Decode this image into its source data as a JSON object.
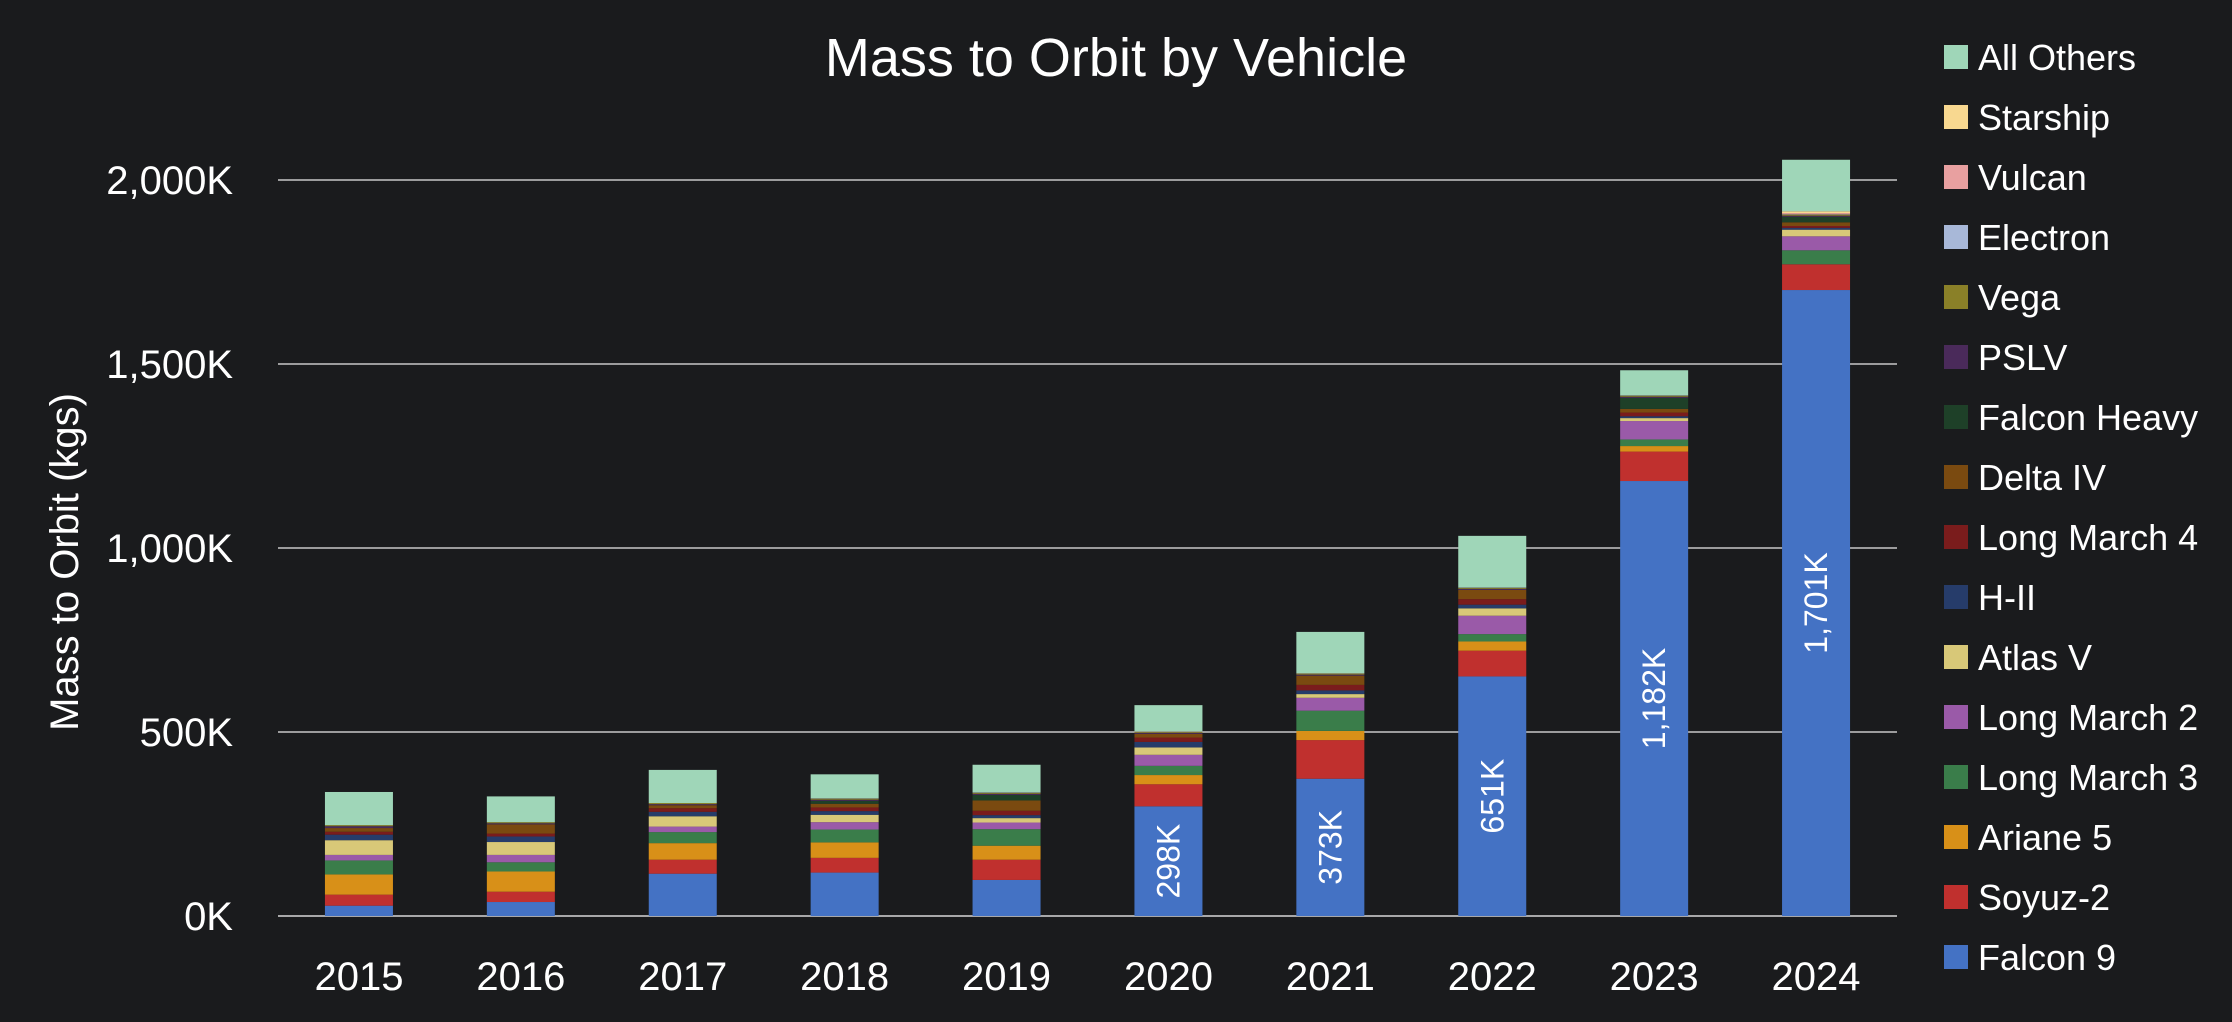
{
  "chart_data": {
    "type": "bar",
    "stacked": true,
    "title": "Mass to Orbit by Vehicle",
    "xlabel": "",
    "ylabel": "Mass to Orbit (kgs)",
    "ylim": [
      0,
      2000000
    ],
    "yticks": [
      0,
      500000,
      1000000,
      1500000,
      2000000
    ],
    "ytick_labels": [
      "0K",
      "500K",
      "1,000K",
      "1,500K",
      "2,000K"
    ],
    "grid": true,
    "legend_position": "right",
    "categories": [
      "2015",
      "2016",
      "2017",
      "2018",
      "2019",
      "2020",
      "2021",
      "2022",
      "2023",
      "2024"
    ],
    "series": [
      {
        "name": "Falcon 9",
        "color": "#4472c4",
        "values": [
          28000,
          38000,
          115000,
          118000,
          98000,
          298000,
          373000,
          651000,
          1182000,
          1701000
        ]
      },
      {
        "name": "Soyuz-2",
        "color": "#c0302e",
        "values": [
          30000,
          28000,
          38000,
          40000,
          55000,
          60000,
          105000,
          70000,
          80000,
          70000
        ]
      },
      {
        "name": "Ariane 5",
        "color": "#d89018",
        "values": [
          55000,
          55000,
          45000,
          42000,
          38000,
          25000,
          25000,
          25000,
          15000,
          0
        ]
      },
      {
        "name": "Long March 3",
        "color": "#3a7d4a",
        "values": [
          38000,
          25000,
          30000,
          35000,
          45000,
          25000,
          55000,
          20000,
          18000,
          38000
        ]
      },
      {
        "name": "Long March 2",
        "color": "#9a5aa8",
        "values": [
          15000,
          20000,
          15000,
          20000,
          18000,
          30000,
          35000,
          50000,
          50000,
          38000
        ]
      },
      {
        "name": "Atlas V",
        "color": "#d8c878",
        "values": [
          40000,
          35000,
          28000,
          20000,
          12000,
          20000,
          10000,
          20000,
          8000,
          18000
        ]
      },
      {
        "name": "H-II",
        "color": "#263c6a",
        "values": [
          15000,
          15000,
          12000,
          10000,
          8000,
          15000,
          10000,
          10000,
          5000,
          5000
        ]
      },
      {
        "name": "Long March 4",
        "color": "#7a1c1c",
        "values": [
          8000,
          8000,
          10000,
          10000,
          12000,
          12000,
          15000,
          15000,
          10000,
          5000
        ]
      },
      {
        "name": "Delta IV",
        "color": "#7a4a10",
        "values": [
          10000,
          25000,
          8000,
          10000,
          28000,
          10000,
          25000,
          25000,
          10000,
          10000
        ]
      },
      {
        "name": "Falcon Heavy",
        "color": "#1e4028",
        "values": [
          0,
          0,
          0,
          8000,
          15000,
          0,
          0,
          0,
          30000,
          15000
        ]
      },
      {
        "name": "PSLV",
        "color": "#4a2a5a",
        "values": [
          5000,
          3000,
          3000,
          3000,
          3000,
          3000,
          3000,
          3000,
          3000,
          3000
        ]
      },
      {
        "name": "Vega",
        "color": "#8a8028",
        "values": [
          3000,
          3000,
          3000,
          3000,
          3000,
          3000,
          3000,
          3000,
          3000,
          3000
        ]
      },
      {
        "name": "Electron",
        "color": "#a8b8d8",
        "values": [
          0,
          0,
          0,
          1000,
          1000,
          1000,
          1000,
          1000,
          1000,
          1000
        ]
      },
      {
        "name": "Vulcan",
        "color": "#e8a0a0",
        "values": [
          0,
          0,
          0,
          0,
          0,
          0,
          0,
          0,
          0,
          3000
        ]
      },
      {
        "name": "Starship",
        "color": "#f8d890",
        "values": [
          0,
          0,
          0,
          0,
          0,
          0,
          0,
          0,
          0,
          5000
        ]
      },
      {
        "name": "All Others",
        "color": "#9fd6b8",
        "values": [
          90000,
          70000,
          90000,
          65000,
          75000,
          71000,
          112000,
          140000,
          68000,
          140000
        ]
      }
    ],
    "data_labels": [
      {
        "category": "2020",
        "text": "298K"
      },
      {
        "category": "2021",
        "text": "373K"
      },
      {
        "category": "2022",
        "text": "651K"
      },
      {
        "category": "2023",
        "text": "1,182K"
      },
      {
        "category": "2024",
        "text": "1,701K"
      }
    ]
  }
}
